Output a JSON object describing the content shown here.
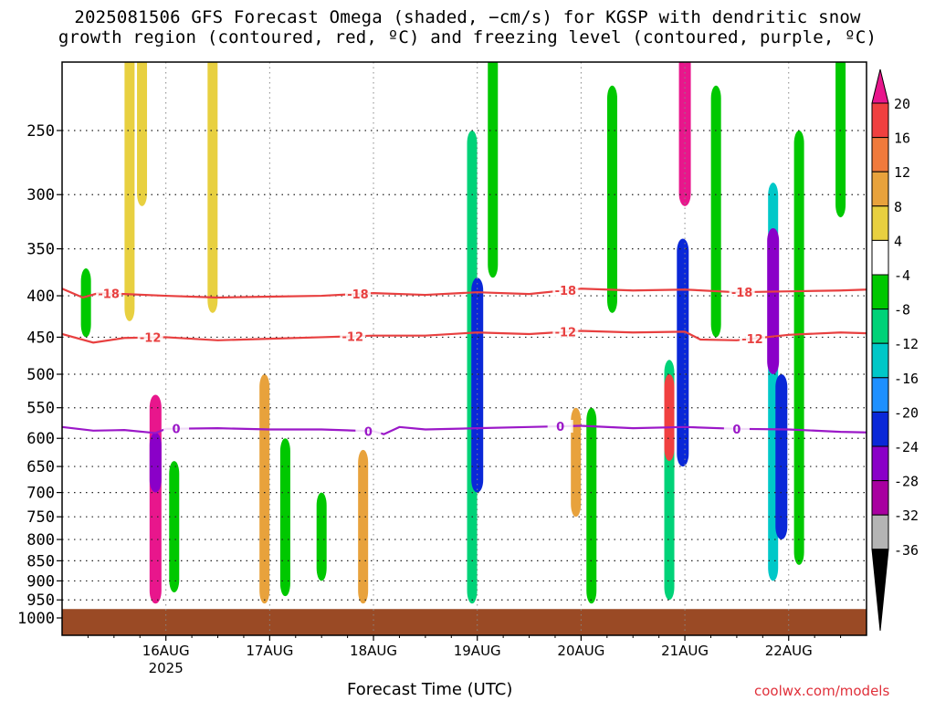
{
  "title": {
    "line1": "2025081506 GFS Forecast Omega (shaded, −cm/s) for KGSP with dendritic snow",
    "line2": "growth region (contoured, red, ºC) and freezing level (contoured, purple, ºC)"
  },
  "credit": "coolwx.com/models",
  "colors": {
    "snow_growth_contour": "#e84040",
    "freezing_contour": "#9b18c8",
    "ground": "#9a4a25"
  },
  "chart_data": {
    "type": "heatmap",
    "title": "2025081506 GFS Forecast Omega (shaded, −cm/s) for KGSP with dendritic snow growth region (contoured, red, ºC) and freezing level (contoured, purple, ºC)",
    "xlabel": "Forecast Time (UTC)",
    "ylabel": "",
    "x_ticks": [
      {
        "label": "16AUG",
        "sub": "2025",
        "day": 1.0
      },
      {
        "label": "17AUG",
        "sub": "",
        "day": 2.0
      },
      {
        "label": "18AUG",
        "sub": "",
        "day": 3.0
      },
      {
        "label": "19AUG",
        "sub": "",
        "day": 4.0
      },
      {
        "label": "20AUG",
        "sub": "",
        "day": 5.0
      },
      {
        "label": "21AUG",
        "sub": "",
        "day": 6.0
      },
      {
        "label": "22AUG",
        "sub": "",
        "day": 7.0
      }
    ],
    "xlim": [
      0.0,
      7.75
    ],
    "y_ticks": [
      250,
      300,
      350,
      400,
      450,
      500,
      550,
      600,
      650,
      700,
      750,
      800,
      850,
      900,
      950,
      1000
    ],
    "ylim": [
      1000,
      200
    ],
    "grid": true,
    "colorbar": {
      "labels": [
        "20",
        "16",
        "12",
        "8",
        "4",
        "-4",
        "-8",
        "-12",
        "-16",
        "-20",
        "-24",
        "-28",
        "-32",
        "-36"
      ],
      "colors": [
        "#e8168c",
        "#f04040",
        "#f07a3c",
        "#e8a23c",
        "#e8d040",
        "#ffffff",
        "#00c800",
        "#00d278",
        "#00c8c8",
        "#1e90ff",
        "#0a28d8",
        "#8a00c8",
        "#a800a0",
        "#b4b4b4",
        "#000000"
      ]
    },
    "contours": [
      {
        "name": "-18",
        "color": "#e84040",
        "points": [
          [
            0.0,
            392
          ],
          [
            0.2,
            402
          ],
          [
            0.35,
            397
          ],
          [
            0.6,
            398
          ],
          [
            1.0,
            400
          ],
          [
            1.5,
            402
          ],
          [
            2.0,
            401
          ],
          [
            2.5,
            400
          ],
          [
            3.0,
            397
          ],
          [
            3.5,
            399
          ],
          [
            4.0,
            396
          ],
          [
            4.5,
            398
          ],
          [
            5.0,
            392
          ],
          [
            5.5,
            394
          ],
          [
            6.0,
            393
          ],
          [
            6.5,
            396
          ],
          [
            7.0,
            395
          ],
          [
            7.5,
            394
          ],
          [
            7.75,
            393
          ]
        ],
        "labels": [
          [
            0.45,
            "-18"
          ],
          [
            2.85,
            "-18"
          ],
          [
            4.85,
            "-18"
          ],
          [
            6.55,
            "-18"
          ]
        ]
      },
      {
        "name": "-12",
        "color": "#e84040",
        "points": [
          [
            0.0,
            446
          ],
          [
            0.3,
            457
          ],
          [
            0.6,
            451
          ],
          [
            1.0,
            450
          ],
          [
            1.5,
            454
          ],
          [
            2.0,
            452
          ],
          [
            2.5,
            450
          ],
          [
            3.0,
            448
          ],
          [
            3.5,
            448
          ],
          [
            4.0,
            444
          ],
          [
            4.5,
            446
          ],
          [
            5.0,
            442
          ],
          [
            5.5,
            444
          ],
          [
            6.0,
            443
          ],
          [
            6.15,
            453
          ],
          [
            6.5,
            454
          ],
          [
            7.0,
            447
          ],
          [
            7.5,
            444
          ],
          [
            7.75,
            445
          ]
        ],
        "labels": [
          [
            0.85,
            "-12"
          ],
          [
            2.8,
            "-12"
          ],
          [
            4.85,
            "-12"
          ],
          [
            6.65,
            "-12"
          ]
        ]
      },
      {
        "name": "0",
        "color": "#9b18c8",
        "points": [
          [
            0.0,
            581
          ],
          [
            0.3,
            587
          ],
          [
            0.6,
            586
          ],
          [
            0.9,
            591
          ],
          [
            1.0,
            584
          ],
          [
            1.5,
            583
          ],
          [
            2.0,
            585
          ],
          [
            2.5,
            585
          ],
          [
            3.0,
            588
          ],
          [
            3.1,
            593
          ],
          [
            3.25,
            581
          ],
          [
            3.5,
            585
          ],
          [
            4.0,
            583
          ],
          [
            4.5,
            581
          ],
          [
            5.0,
            579
          ],
          [
            5.5,
            583
          ],
          [
            6.0,
            581
          ],
          [
            6.5,
            584
          ],
          [
            7.0,
            585
          ],
          [
            7.5,
            589
          ],
          [
            7.75,
            590
          ]
        ],
        "labels": [
          [
            1.1,
            "0"
          ],
          [
            2.95,
            "0"
          ],
          [
            4.8,
            "0"
          ],
          [
            6.5,
            "0"
          ]
        ]
      }
    ],
    "omega_shading": [
      {
        "day": 0.23,
        "p_top": 370,
        "p_bot": 450,
        "value": -8
      },
      {
        "day": 0.65,
        "p_top": 200,
        "p_bot": 430,
        "value": 4
      },
      {
        "day": 0.9,
        "p_top": 530,
        "p_bot": 960,
        "value": 20
      },
      {
        "day": 0.9,
        "p_top": 590,
        "p_bot": 700,
        "value": -28
      },
      {
        "day": 0.77,
        "p_top": 200,
        "p_bot": 310,
        "value": 4
      },
      {
        "day": 1.08,
        "p_top": 640,
        "p_bot": 930,
        "value": -8
      },
      {
        "day": 1.45,
        "p_top": 200,
        "p_bot": 420,
        "value": 4
      },
      {
        "day": 1.95,
        "p_top": 500,
        "p_bot": 960,
        "value": 8
      },
      {
        "day": 2.15,
        "p_top": 600,
        "p_bot": 940,
        "value": -8
      },
      {
        "day": 2.5,
        "p_top": 700,
        "p_bot": 900,
        "value": -8
      },
      {
        "day": 2.9,
        "p_top": 620,
        "p_bot": 960,
        "value": 8
      },
      {
        "day": 3.95,
        "p_top": 250,
        "p_bot": 960,
        "value": -12
      },
      {
        "day": 4.0,
        "p_top": 380,
        "p_bot": 700,
        "value": -24
      },
      {
        "day": 4.15,
        "p_top": 200,
        "p_bot": 380,
        "value": -8
      },
      {
        "day": 4.95,
        "p_top": 550,
        "p_bot": 750,
        "value": 8
      },
      {
        "day": 5.1,
        "p_top": 550,
        "p_bot": 960,
        "value": -8
      },
      {
        "day": 5.3,
        "p_top": 220,
        "p_bot": 420,
        "value": -8
      },
      {
        "day": 5.85,
        "p_top": 480,
        "p_bot": 950,
        "value": -12
      },
      {
        "day": 5.85,
        "p_top": 500,
        "p_bot": 640,
        "value": 16
      },
      {
        "day": 6.0,
        "p_top": 200,
        "p_bot": 310,
        "value": 20
      },
      {
        "day": 5.98,
        "p_top": 340,
        "p_bot": 650,
        "value": -24
      },
      {
        "day": 6.3,
        "p_top": 220,
        "p_bot": 450,
        "value": -8
      },
      {
        "day": 6.85,
        "p_top": 290,
        "p_bot": 900,
        "value": -16
      },
      {
        "day": 6.85,
        "p_top": 330,
        "p_bot": 500,
        "value": -28
      },
      {
        "day": 6.93,
        "p_top": 500,
        "p_bot": 800,
        "value": -24
      },
      {
        "day": 7.1,
        "p_top": 250,
        "p_bot": 860,
        "value": -8
      },
      {
        "day": 7.5,
        "p_top": 200,
        "p_bot": 320,
        "value": -8
      }
    ]
  }
}
